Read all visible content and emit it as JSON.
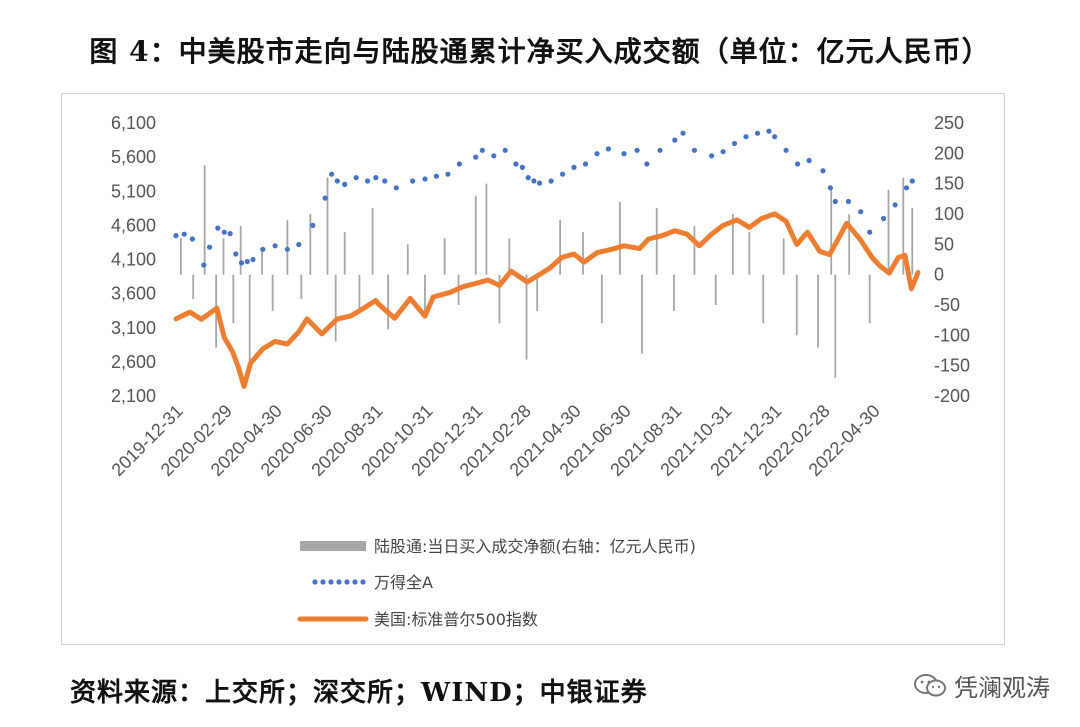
{
  "title": "图 4：中美股市走向与陆股通累计净买入成交额（单位：亿元人民币）",
  "source": "资料来源：上交所；深交所；WIND；中银证券",
  "watermark": "凭澜观涛",
  "colors": {
    "bars": "#a6a6a6",
    "wind_a": "#4472c4",
    "sp500": "#ed7d31",
    "axis_text": "#595959",
    "frame": "#d9d9d9"
  },
  "chart_data": {
    "type": "line",
    "title": "",
    "x_tick_labels": [
      "2019-12-31",
      "2020-02-29",
      "2020-04-30",
      "2020-06-30",
      "2020-08-31",
      "2020-10-31",
      "2020-12-31",
      "2021-02-28",
      "2021-04-30",
      "2021-06-30",
      "2021-08-31",
      "2021-10-31",
      "2021-12-31",
      "2022-02-28",
      "2022-04-30"
    ],
    "left_axis": {
      "ticks": [
        "6,100",
        "5,600",
        "5,100",
        "4,600",
        "4,100",
        "3,600",
        "3,100",
        "2,600",
        "2,100"
      ],
      "ylim": [
        2100,
        6100
      ]
    },
    "right_axis": {
      "ticks": [
        "250",
        "200",
        "150",
        "100",
        "50",
        "0",
        "-50",
        "-100",
        "-150",
        "-200"
      ],
      "ylim": [
        -200,
        250
      ]
    },
    "legend": [
      {
        "label": "陆股通:当日买入成交净额(右轴：亿元人民币)",
        "style": "bar"
      },
      {
        "label": "万得全A",
        "style": "dots"
      },
      {
        "label": "美国:标准普尔500指数",
        "style": "line"
      }
    ],
    "series": [
      {
        "name": "万得全A",
        "axis": "left",
        "style": "dots",
        "x": [
          "2019-12-31",
          "2020-01-10",
          "2020-01-20",
          "2020-02-03",
          "2020-02-10",
          "2020-02-20",
          "2020-02-28",
          "2020-03-06",
          "2020-03-13",
          "2020-03-20",
          "2020-03-27",
          "2020-04-03",
          "2020-04-15",
          "2020-04-30",
          "2020-05-15",
          "2020-05-29",
          "2020-06-15",
          "2020-06-30",
          "2020-07-08",
          "2020-07-15",
          "2020-07-24",
          "2020-08-07",
          "2020-08-21",
          "2020-08-31",
          "2020-09-11",
          "2020-09-25",
          "2020-10-15",
          "2020-10-30",
          "2020-11-13",
          "2020-11-27",
          "2020-12-11",
          "2020-12-31",
          "2021-01-08",
          "2021-01-22",
          "2021-02-05",
          "2021-02-18",
          "2021-02-26",
          "2021-03-05",
          "2021-03-12",
          "2021-03-19",
          "2021-04-02",
          "2021-04-16",
          "2021-04-30",
          "2021-05-14",
          "2021-05-28",
          "2021-06-11",
          "2021-06-30",
          "2021-07-16",
          "2021-07-28",
          "2021-08-13",
          "2021-08-31",
          "2021-09-10",
          "2021-09-24",
          "2021-10-15",
          "2021-10-29",
          "2021-11-12",
          "2021-11-26",
          "2021-12-10",
          "2021-12-24",
          "2021-12-31",
          "2022-01-14",
          "2022-01-28",
          "2022-02-11",
          "2022-02-28",
          "2022-03-09",
          "2022-03-15",
          "2022-03-31",
          "2022-04-15",
          "2022-04-26",
          "2022-05-13",
          "2022-05-27",
          "2022-06-10",
          "2022-06-17"
        ],
        "values": [
          4450,
          4470,
          4400,
          4020,
          4280,
          4560,
          4500,
          4480,
          4180,
          4050,
          4070,
          4100,
          4250,
          4300,
          4250,
          4320,
          4600,
          5000,
          5350,
          5250,
          5200,
          5300,
          5250,
          5300,
          5250,
          5150,
          5250,
          5280,
          5320,
          5350,
          5500,
          5600,
          5700,
          5620,
          5700,
          5500,
          5450,
          5300,
          5250,
          5220,
          5250,
          5350,
          5450,
          5500,
          5650,
          5720,
          5650,
          5700,
          5500,
          5700,
          5850,
          5950,
          5700,
          5620,
          5680,
          5800,
          5900,
          5950,
          5980,
          5900,
          5700,
          5500,
          5550,
          5400,
          5150,
          4950,
          4950,
          4800,
          4500,
          4700,
          4900,
          5150,
          5250
        ]
      },
      {
        "name": "美国:标准普尔500指数",
        "axis": "left",
        "style": "line",
        "x": [
          "2019-12-31",
          "2020-01-17",
          "2020-01-31",
          "2020-02-19",
          "2020-02-28",
          "2020-03-09",
          "2020-03-16",
          "2020-03-23",
          "2020-03-31",
          "2020-04-15",
          "2020-04-30",
          "2020-05-15",
          "2020-05-29",
          "2020-06-08",
          "2020-06-26",
          "2020-07-15",
          "2020-07-31",
          "2020-08-14",
          "2020-08-31",
          "2020-09-03",
          "2020-09-23",
          "2020-10-12",
          "2020-10-30",
          "2020-11-09",
          "2020-11-30",
          "2020-12-15",
          "2020-12-31",
          "2021-01-15",
          "2021-01-29",
          "2021-02-12",
          "2021-03-04",
          "2021-03-31",
          "2021-04-15",
          "2021-04-30",
          "2021-05-12",
          "2021-05-28",
          "2021-06-15",
          "2021-06-30",
          "2021-07-19",
          "2021-07-30",
          "2021-08-16",
          "2021-08-31",
          "2021-09-15",
          "2021-09-30",
          "2021-10-15",
          "2021-10-29",
          "2021-11-15",
          "2021-11-30",
          "2021-12-15",
          "2021-12-31",
          "2022-01-14",
          "2022-01-27",
          "2022-02-09",
          "2022-02-24",
          "2022-03-08",
          "2022-03-29",
          "2022-04-14",
          "2022-04-29",
          "2022-05-09",
          "2022-05-20",
          "2022-05-31",
          "2022-06-08",
          "2022-06-16",
          "2022-06-24"
        ],
        "values": [
          3230,
          3330,
          3225,
          3386,
          2955,
          2750,
          2530,
          2240,
          2580,
          2790,
          2900,
          2860,
          3040,
          3230,
          3010,
          3230,
          3270,
          3370,
          3500,
          3450,
          3240,
          3530,
          3270,
          3550,
          3620,
          3700,
          3750,
          3800,
          3720,
          3930,
          3770,
          3970,
          4130,
          4180,
          4060,
          4200,
          4250,
          4300,
          4260,
          4400,
          4450,
          4520,
          4470,
          4300,
          4470,
          4600,
          4680,
          4570,
          4700,
          4770,
          4660,
          4320,
          4500,
          4220,
          4170,
          4630,
          4400,
          4130,
          4000,
          3900,
          4130,
          4160,
          3670,
          3910
        ]
      },
      {
        "name": "陆股通:当日买入成交净额(右轴：亿元人民币)",
        "axis": "right",
        "style": "bar",
        "x": [
          "2020-01-06",
          "2020-01-21",
          "2020-02-04",
          "2020-02-18",
          "2020-02-27",
          "2020-03-10",
          "2020-03-19",
          "2020-03-30",
          "2020-04-14",
          "2020-04-27",
          "2020-05-15",
          "2020-06-01",
          "2020-06-12",
          "2020-07-03",
          "2020-07-13",
          "2020-07-24",
          "2020-08-11",
          "2020-08-27",
          "2020-09-15",
          "2020-10-09",
          "2020-10-30",
          "2020-11-23",
          "2020-12-10",
          "2020-12-31",
          "2021-01-13",
          "2021-01-29",
          "2021-02-10",
          "2021-03-03",
          "2021-03-16",
          "2021-04-13",
          "2021-05-11",
          "2021-06-03",
          "2021-06-25",
          "2021-07-22",
          "2021-08-09",
          "2021-08-30",
          "2021-09-24",
          "2021-10-20",
          "2021-11-10",
          "2021-11-30",
          "2021-12-17",
          "2022-01-11",
          "2022-01-27",
          "2022-02-22",
          "2022-03-10",
          "2022-03-15",
          "2022-04-01",
          "2022-04-26",
          "2022-05-19",
          "2022-06-06",
          "2022-06-17"
        ],
        "values": [
          60,
          -40,
          180,
          -120,
          60,
          -80,
          80,
          -150,
          40,
          -60,
          90,
          -40,
          100,
          160,
          -110,
          70,
          -60,
          110,
          -90,
          50,
          -70,
          60,
          -50,
          130,
          150,
          -80,
          60,
          -140,
          -60,
          90,
          70,
          -80,
          120,
          -130,
          110,
          -60,
          80,
          -50,
          100,
          70,
          -80,
          60,
          -100,
          -120,
          140,
          -170,
          100,
          -80,
          140,
          160,
          110
        ]
      }
    ]
  }
}
